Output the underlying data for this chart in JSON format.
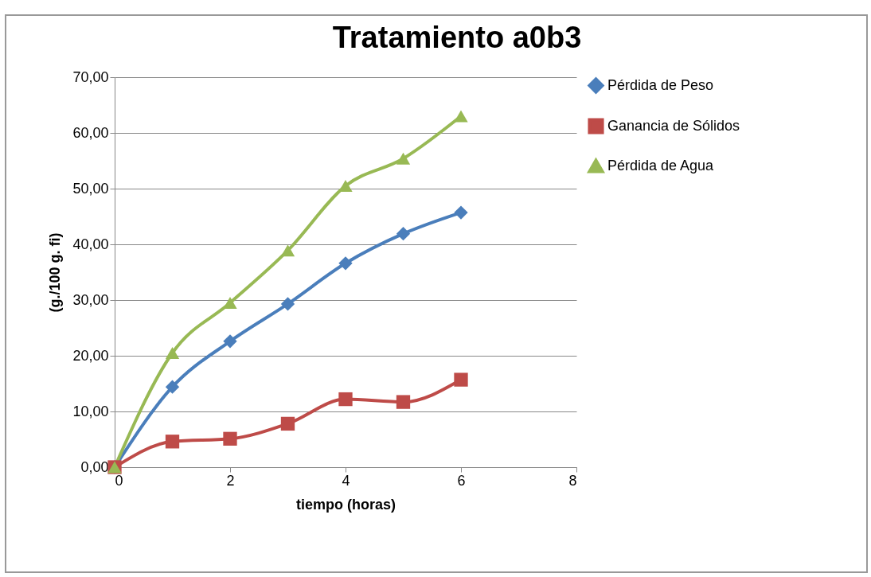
{
  "chart_data": {
    "type": "line",
    "title": "Tratamiento a0b3",
    "xlabel": "tiempo (horas)",
    "ylabel": "(g./100 g. fi)",
    "x": [
      0,
      1,
      2,
      3,
      4,
      5,
      6
    ],
    "series": [
      {
        "name": "Pérdida de Peso",
        "color": "#4a7ebb",
        "marker": "diamond",
        "values": [
          0,
          14.4,
          22.6,
          29.3,
          36.6,
          41.9,
          45.7
        ]
      },
      {
        "name": "Ganancia de Sólidos",
        "color": "#be4b48",
        "marker": "square",
        "values": [
          0,
          4.6,
          5.1,
          7.8,
          12.2,
          11.7,
          15.7
        ]
      },
      {
        "name": "Pérdida de Agua",
        "color": "#98b954",
        "marker": "triangle",
        "values": [
          0,
          20.5,
          29.5,
          38.9,
          50.5,
          55.4,
          63.0
        ]
      }
    ],
    "xlim": [
      0,
      8
    ],
    "xticks": [
      0,
      2,
      4,
      6,
      8
    ],
    "ylim": [
      0,
      70
    ],
    "yticks": [
      {
        "value": 0,
        "label": "0,00"
      },
      {
        "value": 10,
        "label": "10,00"
      },
      {
        "value": 20,
        "label": "20,00"
      },
      {
        "value": 30,
        "label": "30,00"
      },
      {
        "value": 40,
        "label": "40,00"
      },
      {
        "value": 50,
        "label": "50,00"
      },
      {
        "value": 60,
        "label": "60,00"
      },
      {
        "value": 70,
        "label": "70,00"
      }
    ],
    "grid": "y",
    "legend": "right",
    "line_style": "solid"
  }
}
